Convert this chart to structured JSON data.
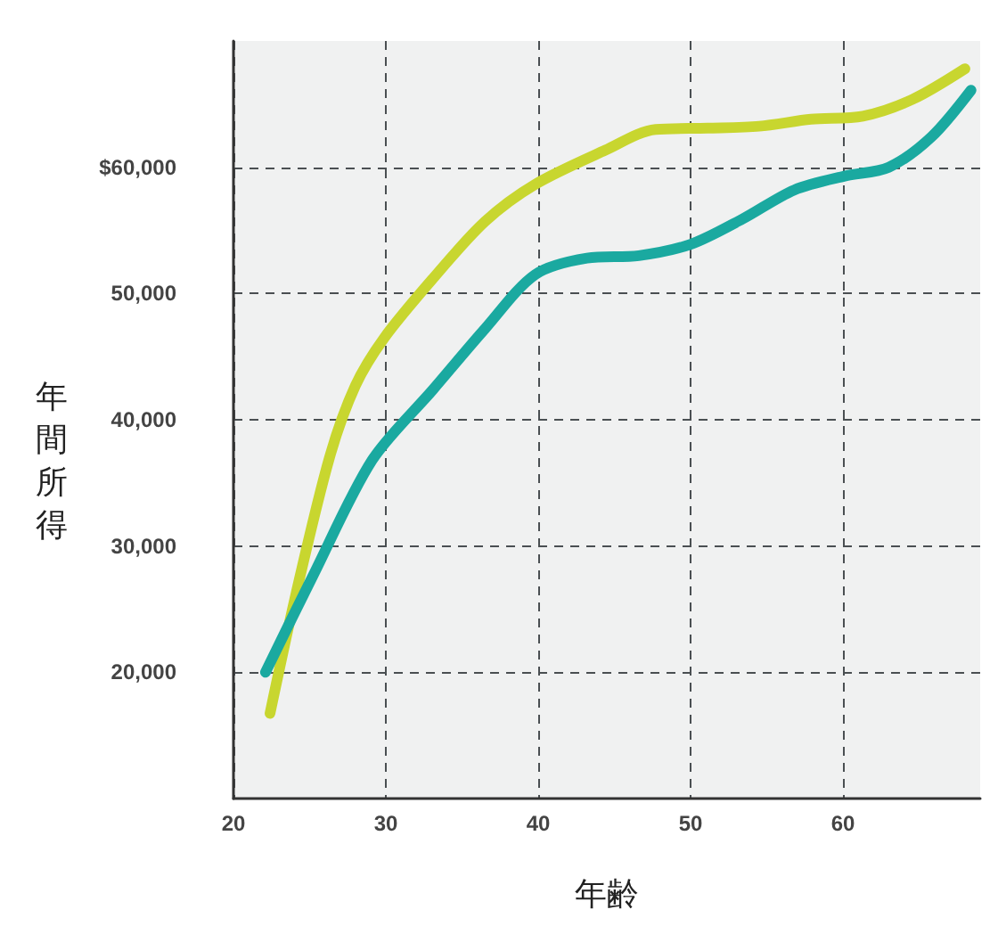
{
  "chart_data": {
    "type": "line",
    "xlabel": "年齢",
    "ylabel": "年間所得",
    "xlim": [
      20,
      69
    ],
    "xticks": [
      20,
      30,
      40,
      50,
      60
    ],
    "ylim": [
      10000,
      70000
    ],
    "yticks": [
      {
        "value": 20000,
        "label": "20,000"
      },
      {
        "value": 30000,
        "label": "30,000"
      },
      {
        "value": 40000,
        "label": "40,000"
      },
      {
        "value": 50000,
        "label": "50,000"
      },
      {
        "value": 60000,
        "label": "$60,000"
      }
    ],
    "grid": true,
    "series": [
      {
        "color": "#c8d62f",
        "x": [
          22.4,
          24.1,
          26.3,
          28,
          29.9,
          33.1,
          36.5,
          39.8,
          44.4,
          47.7,
          51.1,
          54.5,
          57.9,
          61.3,
          64.6,
          68
        ],
        "values": [
          16750,
          26200,
          37000,
          42700,
          46500,
          51200,
          55700,
          58650,
          61350,
          63000,
          63100,
          63250,
          63800,
          64050,
          65400,
          67800
        ]
      },
      {
        "color": "#1aa9a0",
        "x": [
          22.1,
          25.2,
          29.1,
          33.1,
          36.5,
          39.8,
          43.2,
          46.6,
          50,
          53.4,
          56.8,
          60.1,
          63,
          65.8,
          68.4
        ],
        "values": [
          20000,
          27600,
          36800,
          42400,
          47200,
          51500,
          52800,
          53000,
          53900,
          55900,
          58200,
          59300,
          60000,
          62400,
          66100
        ]
      }
    ]
  }
}
